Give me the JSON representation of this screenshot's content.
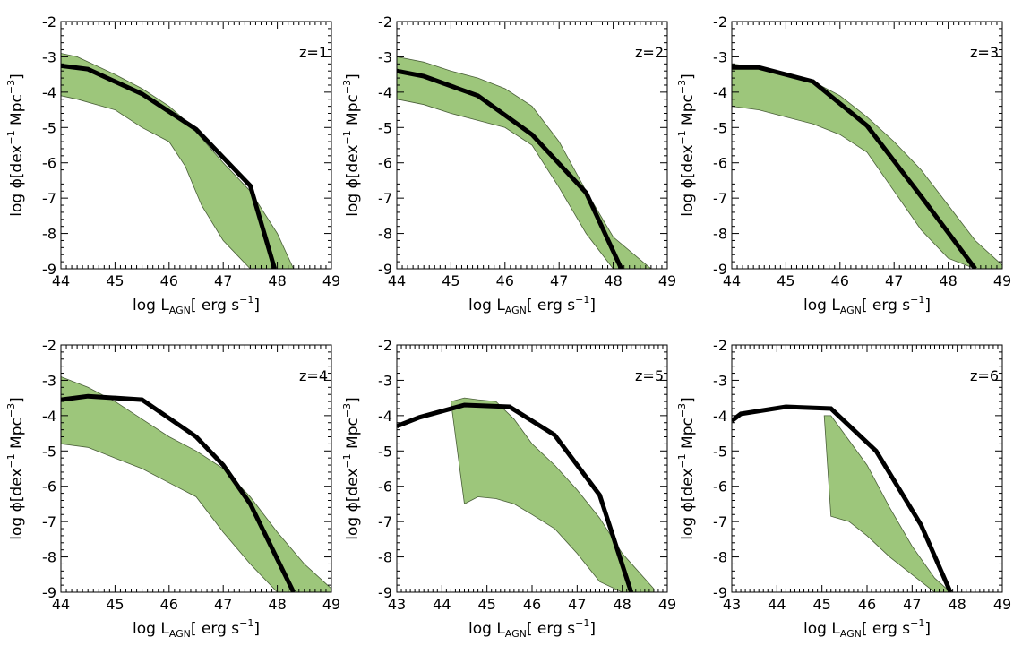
{
  "figure_colors": {
    "band_fill": "#9dc67b",
    "band_edge": "#4a5f39",
    "model_line": "#000000"
  },
  "chart_data": [
    {
      "type": "line",
      "panel_label": "z=1",
      "xlabel_main": "log L",
      "xlabel_sub": "AGN",
      "xlabel_tail": "[ erg s",
      "xlabel_exp": "−1",
      "xlabel_close": "]",
      "ylabel_main": "log ϕ[dex",
      "ylabel_exp1": "−1",
      "ylabel_mid": " Mpc",
      "ylabel_exp2": "−3",
      "ylabel_close": "]",
      "xlim": [
        44,
        49
      ],
      "ylim": [
        -9,
        -2
      ],
      "xticks": [
        44,
        45,
        46,
        47,
        48,
        49
      ],
      "yticks": [
        -2,
        -3,
        -4,
        -5,
        -6,
        -7,
        -8,
        -9
      ],
      "model": {
        "x": [
          44.0,
          44.5,
          45.5,
          46.5,
          47.5,
          47.95
        ],
        "y": [
          -3.25,
          -3.35,
          -4.05,
          -5.05,
          -6.65,
          -9.0
        ]
      },
      "band": {
        "x": [
          44.0,
          44.3,
          45.0,
          45.5,
          46.0,
          46.3,
          46.6,
          47.0,
          47.5,
          48.0,
          48.3
        ],
        "upper": [
          -2.9,
          -3.0,
          -3.5,
          -3.9,
          -4.4,
          -4.8,
          -5.3,
          -6.0,
          -6.8,
          -8.0,
          -9.0
        ],
        "lower": [
          -4.1,
          -4.2,
          -4.5,
          -5.0,
          -5.4,
          -6.1,
          -7.2,
          -8.2,
          -9.0,
          -9.0,
          -9.0
        ]
      }
    },
    {
      "type": "line",
      "panel_label": "z=2",
      "xlabel_main": "log L",
      "xlabel_sub": "AGN",
      "xlabel_tail": "[ erg s",
      "xlabel_exp": "−1",
      "xlabel_close": "]",
      "ylabel_main": "log ϕ[dex",
      "ylabel_exp1": "−1",
      "ylabel_mid": " Mpc",
      "ylabel_exp2": "−3",
      "ylabel_close": "]",
      "xlim": [
        44,
        49
      ],
      "ylim": [
        -9,
        -2
      ],
      "xticks": [
        44,
        45,
        46,
        47,
        48,
        49
      ],
      "yticks": [
        -2,
        -3,
        -4,
        -5,
        -6,
        -7,
        -8,
        -9
      ],
      "model": {
        "x": [
          44.0,
          44.5,
          45.5,
          46.5,
          47.5,
          48.15
        ],
        "y": [
          -3.4,
          -3.55,
          -4.1,
          -5.2,
          -6.85,
          -9.0
        ]
      },
      "band": {
        "x": [
          44.0,
          44.5,
          45.0,
          45.5,
          46.0,
          46.5,
          47.0,
          47.5,
          48.0,
          48.7
        ],
        "upper": [
          -3.0,
          -3.15,
          -3.4,
          -3.6,
          -3.9,
          -4.4,
          -5.4,
          -6.8,
          -8.1,
          -9.0
        ],
        "lower": [
          -4.2,
          -4.35,
          -4.6,
          -4.8,
          -5.0,
          -5.5,
          -6.7,
          -8.0,
          -9.0,
          -9.0
        ]
      }
    },
    {
      "type": "line",
      "panel_label": "z=3",
      "xlabel_main": "log L",
      "xlabel_sub": "AGN",
      "xlabel_tail": "[ erg s",
      "xlabel_exp": "−1",
      "xlabel_close": "]",
      "ylabel_main": "log ϕ[dex",
      "ylabel_exp1": "−1",
      "ylabel_mid": " Mpc",
      "ylabel_exp2": "−3",
      "ylabel_close": "]",
      "xlim": [
        44,
        49
      ],
      "ylim": [
        -9,
        -2
      ],
      "xticks": [
        44,
        45,
        46,
        47,
        48,
        49
      ],
      "yticks": [
        -2,
        -3,
        -4,
        -5,
        -6,
        -7,
        -8,
        -9
      ],
      "model": {
        "x": [
          44.0,
          44.5,
          45.5,
          46.5,
          47.5,
          48.5
        ],
        "y": [
          -3.3,
          -3.3,
          -3.7,
          -4.95,
          -6.95,
          -9.0
        ]
      },
      "band": {
        "x": [
          44.0,
          44.5,
          45.0,
          45.5,
          46.0,
          46.5,
          47.0,
          47.5,
          48.0,
          48.5,
          49.0
        ],
        "upper": [
          -3.2,
          -3.3,
          -3.45,
          -3.7,
          -4.1,
          -4.7,
          -5.4,
          -6.2,
          -7.2,
          -8.2,
          -8.9
        ],
        "lower": [
          -4.4,
          -4.5,
          -4.7,
          -4.9,
          -5.2,
          -5.7,
          -6.8,
          -7.9,
          -8.7,
          -9.0,
          -9.0
        ]
      }
    },
    {
      "type": "line",
      "panel_label": "z=4",
      "xlabel_main": "log L",
      "xlabel_sub": "AGN",
      "xlabel_tail": "[ erg s",
      "xlabel_exp": "−1",
      "xlabel_close": "]",
      "ylabel_main": "log ϕ[dex",
      "ylabel_exp1": "−1",
      "ylabel_mid": " Mpc",
      "ylabel_exp2": "−3",
      "ylabel_close": "]",
      "xlim": [
        44,
        49
      ],
      "ylim": [
        -9,
        -2
      ],
      "xticks": [
        44,
        45,
        46,
        47,
        48,
        49
      ],
      "yticks": [
        -2,
        -3,
        -4,
        -5,
        -6,
        -7,
        -8,
        -9
      ],
      "model": {
        "x": [
          44.0,
          44.5,
          45.5,
          46.5,
          47.0,
          47.5,
          48.3
        ],
        "y": [
          -3.55,
          -3.45,
          -3.55,
          -4.6,
          -5.4,
          -6.5,
          -9.0
        ]
      },
      "band": {
        "x": [
          44.0,
          44.5,
          45.0,
          45.5,
          46.0,
          46.5,
          47.0,
          47.5,
          48.0,
          48.5,
          49.0
        ],
        "upper": [
          -2.9,
          -3.2,
          -3.6,
          -4.1,
          -4.6,
          -5.0,
          -5.5,
          -6.3,
          -7.3,
          -8.2,
          -8.9
        ],
        "lower": [
          -4.8,
          -4.9,
          -5.2,
          -5.5,
          -5.9,
          -6.3,
          -7.3,
          -8.2,
          -9.0,
          -9.0,
          -9.0
        ]
      }
    },
    {
      "type": "line",
      "panel_label": "z=5",
      "xlabel_main": "log L",
      "xlabel_sub": "AGN",
      "xlabel_tail": "[ erg s",
      "xlabel_exp": "−1",
      "xlabel_close": "]",
      "ylabel_main": "log ϕ[dex",
      "ylabel_exp1": "−1",
      "ylabel_mid": " Mpc",
      "ylabel_exp2": "−3",
      "ylabel_close": "]",
      "xlim": [
        43,
        49
      ],
      "ylim": [
        -9,
        -2
      ],
      "xticks": [
        43,
        44,
        45,
        46,
        47,
        48,
        49
      ],
      "yticks": [
        -2,
        -3,
        -4,
        -5,
        -6,
        -7,
        -8,
        -9
      ],
      "model": {
        "x": [
          43.0,
          43.5,
          44.5,
          45.5,
          46.5,
          47.5,
          48.2
        ],
        "y": [
          -4.3,
          -4.05,
          -3.7,
          -3.75,
          -4.55,
          -6.25,
          -9.0
        ]
      },
      "band": {
        "x": [
          44.2,
          44.5,
          44.8,
          45.2,
          45.6,
          46.0,
          46.5,
          47.0,
          47.5,
          48.0,
          48.7
        ],
        "upper": [
          -3.6,
          -3.5,
          -3.55,
          -3.6,
          -4.1,
          -4.8,
          -5.4,
          -6.1,
          -6.9,
          -7.9,
          -8.9
        ],
        "lower": [
          -3.6,
          -6.5,
          -6.3,
          -6.35,
          -6.5,
          -6.8,
          -7.2,
          -7.9,
          -8.7,
          -9.0,
          -9.0
        ]
      }
    },
    {
      "type": "line",
      "panel_label": "z=6",
      "xlabel_main": "log L",
      "xlabel_sub": "AGN",
      "xlabel_tail": "[ erg s",
      "xlabel_exp": "−1",
      "xlabel_close": "]",
      "ylabel_main": "log ϕ[dex",
      "ylabel_exp1": "−1",
      "ylabel_mid": " Mpc",
      "ylabel_exp2": "−3",
      "ylabel_close": "]",
      "xlim": [
        43,
        49
      ],
      "ylim": [
        -9,
        -2
      ],
      "xticks": [
        43,
        44,
        45,
        46,
        47,
        48,
        49
      ],
      "yticks": [
        -2,
        -3,
        -4,
        -5,
        -6,
        -7,
        -8,
        -9
      ],
      "model": {
        "x": [
          43.0,
          43.2,
          44.2,
          45.2,
          46.2,
          47.2,
          47.85
        ],
        "y": [
          -4.15,
          -3.95,
          -3.75,
          -3.8,
          -5.0,
          -7.1,
          -9.0
        ]
      },
      "band": {
        "x": [
          45.05,
          45.2,
          45.6,
          46.0,
          46.5,
          47.0,
          47.5,
          47.85
        ],
        "upper": [
          -4.0,
          -4.0,
          -4.7,
          -5.4,
          -6.6,
          -7.7,
          -8.6,
          -9.0
        ],
        "lower": [
          -4.0,
          -6.85,
          -7.0,
          -7.4,
          -8.0,
          -8.5,
          -9.0,
          -9.0
        ]
      }
    }
  ]
}
